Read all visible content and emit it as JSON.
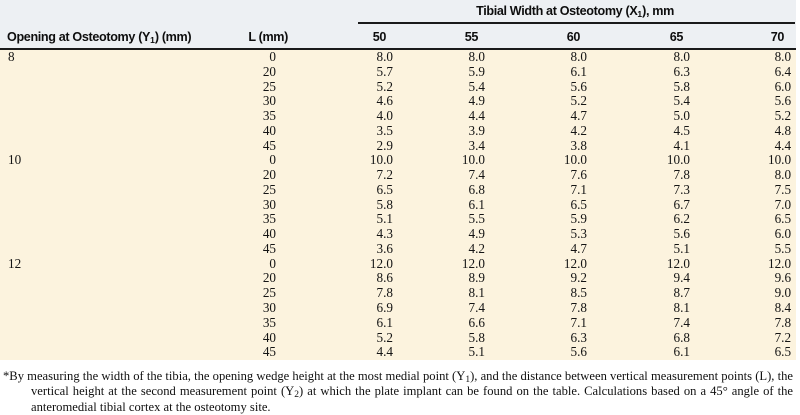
{
  "colors": {
    "header_bg": "#edf0f3",
    "body_bg": "#fcf3de",
    "rule": "#1a1a1a",
    "text": "#141414"
  },
  "table": {
    "span_header": {
      "pre": "Tibial Width at Osteotomy (X",
      "sub": "1",
      "post": "), mm"
    },
    "row_header": {
      "pre": "Opening at Osteotomy (Y",
      "sub": "1",
      "post": ") (mm)"
    },
    "l_header": "L (mm)",
    "width_columns": [
      "50",
      "55",
      "60",
      "65",
      "70"
    ],
    "sections": [
      {
        "opening": "8",
        "rows": [
          {
            "l": "0",
            "values": [
              "8.0",
              "8.0",
              "8.0",
              "8.0",
              "8.0"
            ]
          },
          {
            "l": "20",
            "values": [
              "5.7",
              "5.9",
              "6.1",
              "6.3",
              "6.4"
            ]
          },
          {
            "l": "25",
            "values": [
              "5.2",
              "5.4",
              "5.6",
              "5.8",
              "6.0"
            ]
          },
          {
            "l": "30",
            "values": [
              "4.6",
              "4.9",
              "5.2",
              "5.4",
              "5.6"
            ]
          },
          {
            "l": "35",
            "values": [
              "4.0",
              "4.4",
              "4.7",
              "5.0",
              "5.2"
            ]
          },
          {
            "l": "40",
            "values": [
              "3.5",
              "3.9",
              "4.2",
              "4.5",
              "4.8"
            ]
          },
          {
            "l": "45",
            "values": [
              "2.9",
              "3.4",
              "3.8",
              "4.1",
              "4.4"
            ]
          }
        ]
      },
      {
        "opening": "10",
        "rows": [
          {
            "l": "0",
            "values": [
              "10.0",
              "10.0",
              "10.0",
              "10.0",
              "10.0"
            ]
          },
          {
            "l": "20",
            "values": [
              "7.2",
              "7.4",
              "7.6",
              "7.8",
              "8.0"
            ]
          },
          {
            "l": "25",
            "values": [
              "6.5",
              "6.8",
              "7.1",
              "7.3",
              "7.5"
            ]
          },
          {
            "l": "30",
            "values": [
              "5.8",
              "6.1",
              "6.5",
              "6.7",
              "7.0"
            ]
          },
          {
            "l": "35",
            "values": [
              "5.1",
              "5.5",
              "5.9",
              "6.2",
              "6.5"
            ]
          },
          {
            "l": "40",
            "values": [
              "4.3",
              "4.9",
              "5.3",
              "5.6",
              "6.0"
            ]
          },
          {
            "l": "45",
            "values": [
              "3.6",
              "4.2",
              "4.7",
              "5.1",
              "5.5"
            ]
          }
        ]
      },
      {
        "opening": "12",
        "rows": [
          {
            "l": "0",
            "values": [
              "12.0",
              "12.0",
              "12.0",
              "12.0",
              "12.0"
            ]
          },
          {
            "l": "20",
            "values": [
              "8.6",
              "8.9",
              "9.2",
              "9.4",
              "9.6"
            ]
          },
          {
            "l": "25",
            "values": [
              "7.8",
              "8.1",
              "8.5",
              "8.7",
              "9.0"
            ]
          },
          {
            "l": "30",
            "values": [
              "6.9",
              "7.4",
              "7.8",
              "8.1",
              "8.4"
            ]
          },
          {
            "l": "35",
            "values": [
              "6.1",
              "6.6",
              "7.1",
              "7.4",
              "7.8"
            ]
          },
          {
            "l": "40",
            "values": [
              "5.2",
              "5.8",
              "6.3",
              "6.8",
              "7.2"
            ]
          },
          {
            "l": "45",
            "values": [
              "4.4",
              "5.1",
              "5.6",
              "6.1",
              "6.5"
            ]
          }
        ]
      }
    ]
  },
  "footnote": {
    "p1": "*By measuring the width of the tibia, the opening wedge height at the most medial point (Y",
    "sub1": "1",
    "p2": "), and the distance between vertical measurement points (L), the vertical height at the second measurement point (Y",
    "sub2": "2",
    "p3": ") at which the plate implant can be found on the table. Calculations based on a 45° angle of the anteromedial tibial cortex at the osteotomy site."
  }
}
